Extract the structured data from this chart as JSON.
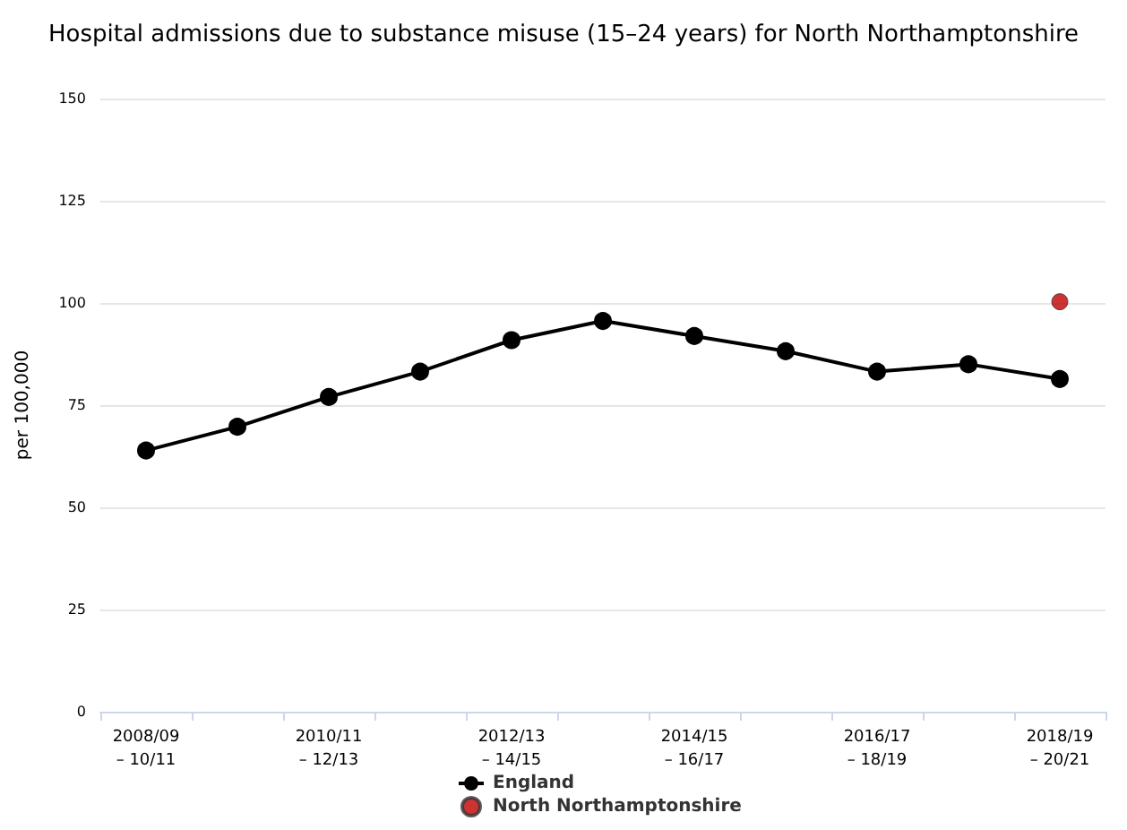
{
  "chart_data": {
    "type": "line",
    "title": "Hospital admissions due to substance misuse (15–24 years) for North Northamptonshire",
    "ylabel": "per 100,000",
    "categories": [
      "2008/09\n– 10/11",
      null,
      "2010/11\n– 12/13",
      null,
      "2012/13\n– 14/15",
      null,
      "2014/15\n– 16/17",
      null,
      "2016/17\n– 18/19",
      null,
      "2018/19\n– 20/21"
    ],
    "series": [
      {
        "name": "England",
        "color": "#000000",
        "values": [
          63.9,
          69.7,
          77.0,
          83.2,
          90.9,
          95.6,
          91.9,
          88.2,
          83.2,
          85.0,
          81.4
        ]
      },
      {
        "name": "North Northamptonshire",
        "type": "scatter",
        "color": "#c00000",
        "values": [
          null,
          null,
          null,
          null,
          null,
          null,
          null,
          null,
          null,
          null,
          100.3
        ]
      }
    ],
    "ylim": [
      0,
      150
    ],
    "yticks": [
      0,
      25,
      50,
      75,
      100,
      125,
      150
    ],
    "grid": "y",
    "legend": "bottom",
    "marker": "circle",
    "line_style": "solid"
  }
}
